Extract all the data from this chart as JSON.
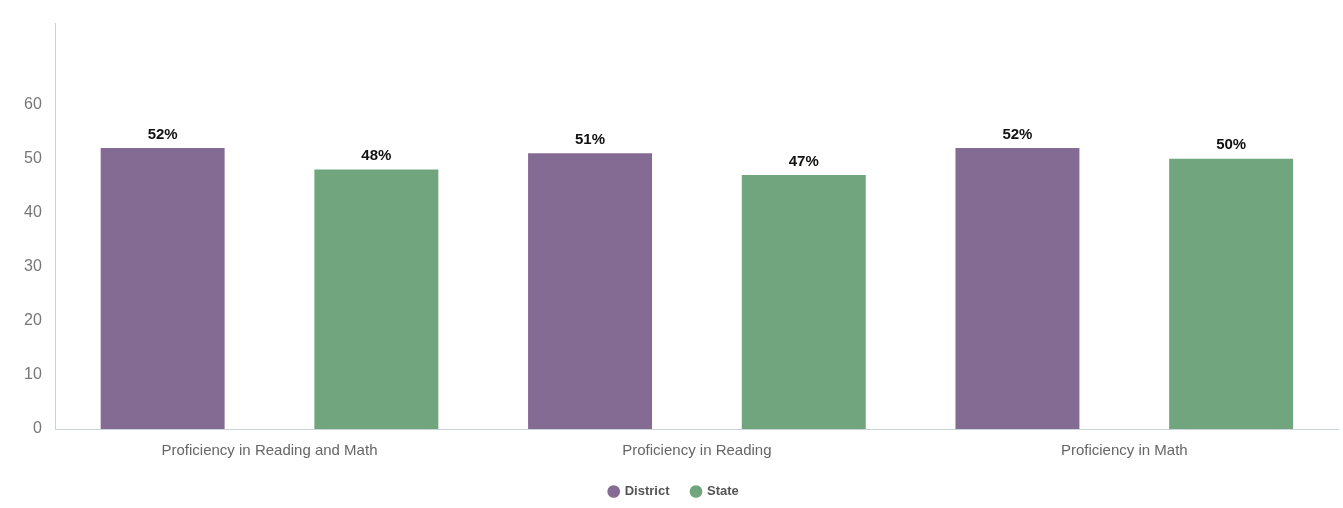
{
  "chart_data": {
    "type": "bar",
    "categories": [
      "Proficiency in Reading and Math",
      "Proficiency in Reading",
      "Proficiency in Math"
    ],
    "series": [
      {
        "name": "District",
        "color": "#846b94",
        "values": [
          52,
          51,
          52
        ],
        "value_labels": [
          "52%",
          "51%",
          "52%"
        ]
      },
      {
        "name": "State",
        "color": "#70a57e",
        "values": [
          48,
          47,
          50
        ],
        "value_labels": [
          "48%",
          "47%",
          "50%"
        ]
      }
    ],
    "ylim": [
      0,
      75
    ],
    "yticks": [
      0,
      10,
      20,
      30,
      40,
      50,
      60
    ],
    "grid": false,
    "legend": "bottom"
  }
}
